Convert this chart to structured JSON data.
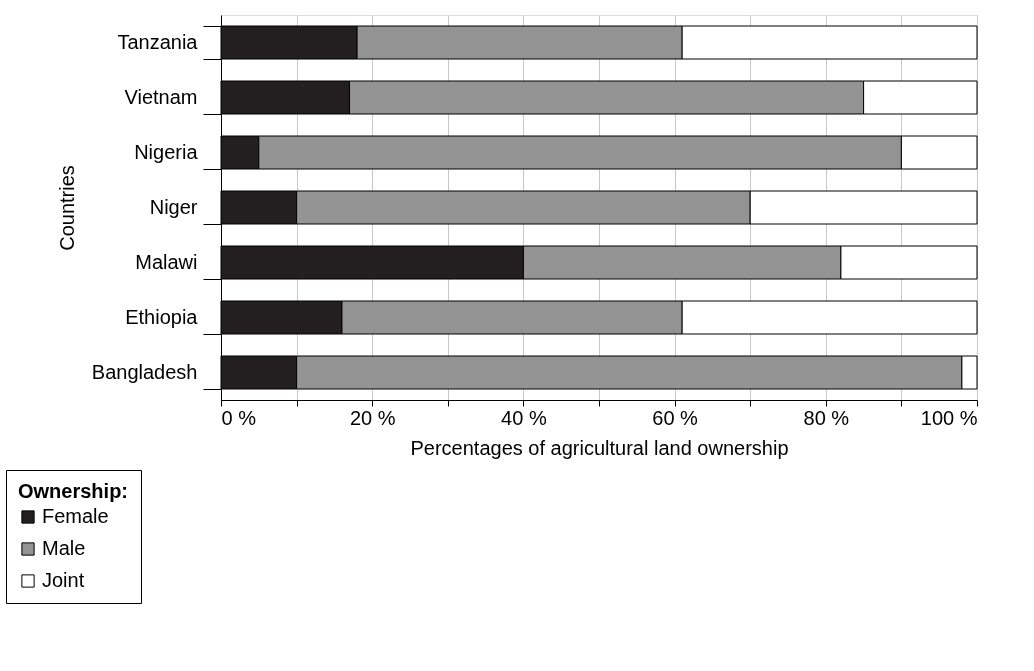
{
  "chart_data": {
    "type": "bar",
    "orientation": "horizontal",
    "stacked": true,
    "categories": [
      "Tanzania",
      "Vietnam",
      "Nigeria",
      "Niger",
      "Malawi",
      "Ethiopia",
      "Bangladesh"
    ],
    "series": [
      {
        "name": "Female",
        "color": "#231f20",
        "values": [
          18,
          17,
          5,
          10,
          40,
          16,
          10
        ]
      },
      {
        "name": "Male",
        "color": "#939393",
        "values": [
          43,
          68,
          85,
          60,
          42,
          45,
          88
        ]
      },
      {
        "name": "Joint",
        "color": "#ffffff",
        "values": [
          39,
          15,
          10,
          30,
          18,
          39,
          2
        ]
      }
    ],
    "xlim": [
      0,
      100
    ],
    "xticks": [
      {
        "value": 0,
        "label": "0 %"
      },
      {
        "value": 10,
        "label": null
      },
      {
        "value": 20,
        "label": "20 %"
      },
      {
        "value": 30,
        "label": null
      },
      {
        "value": 40,
        "label": "40 %"
      },
      {
        "value": 50,
        "label": null
      },
      {
        "value": 60,
        "label": "60 %"
      },
      {
        "value": 70,
        "label": null
      },
      {
        "value": 80,
        "label": "80 %"
      },
      {
        "value": 90,
        "label": null
      },
      {
        "value": 100,
        "label": "100 %"
      }
    ],
    "xlabel": "Percentages of agricultural land ownership",
    "ylabel": "Countries",
    "legend_title": "Ownership:",
    "legend": "bottom left",
    "grid": "x"
  }
}
